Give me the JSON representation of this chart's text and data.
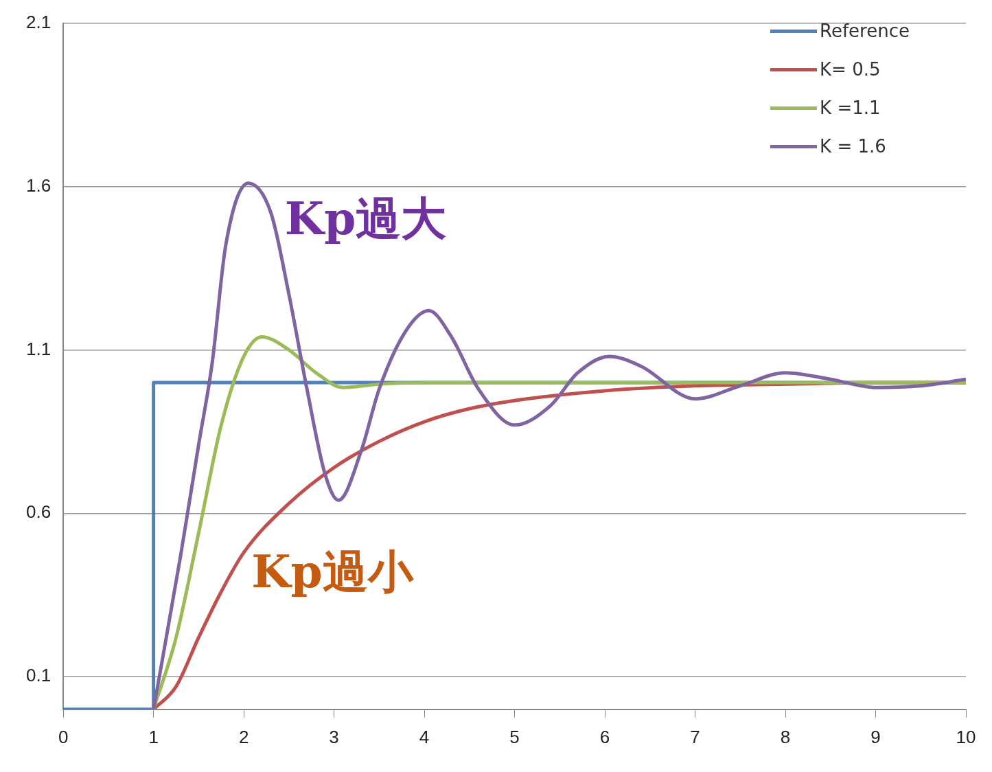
{
  "chart_data": {
    "type": "line",
    "xlim": [
      0,
      10
    ],
    "xticks": [
      0,
      1,
      2,
      3,
      4,
      5,
      6,
      7,
      8,
      9,
      10
    ],
    "ylim": [
      0,
      2.1
    ],
    "yticks": [
      0.1,
      0.6,
      1.1,
      1.6,
      2.1
    ],
    "grid": "y",
    "legend": "top right",
    "marker": "none",
    "line_style": "solid",
    "annotations": [
      "Kp過大",
      "Kp過小"
    ],
    "series": [
      {
        "name": "Reference",
        "color": "#4f81bd",
        "x": [
          0,
          1,
          1,
          10
        ],
        "values": [
          0,
          0,
          1,
          1
        ]
      },
      {
        "name": "K= 0.5",
        "color": "#c0504d",
        "x": [
          1,
          1.25,
          1.5,
          1.75,
          2,
          2.5,
          3,
          3.5,
          4,
          4.5,
          5,
          6,
          7,
          8,
          9,
          10
        ],
        "values": [
          0,
          0.07,
          0.22,
          0.36,
          0.48,
          0.63,
          0.74,
          0.82,
          0.88,
          0.92,
          0.945,
          0.975,
          0.99,
          0.995,
          1,
          1
        ]
      },
      {
        "name": "K =1.1",
        "color": "#9bbb59",
        "x": [
          1,
          1.25,
          1.5,
          1.75,
          2,
          2.2,
          2.5,
          2.8,
          3.1,
          3.5,
          4,
          5,
          6,
          7,
          8,
          9,
          10
        ],
        "values": [
          0,
          0.22,
          0.54,
          0.87,
          1.08,
          1.14,
          1.1,
          1.03,
          0.985,
          0.995,
          1,
          1,
          1,
          1,
          1,
          1,
          1
        ]
      },
      {
        "name": "K = 1.6",
        "color": "#8064a2",
        "x": [
          1,
          1.3,
          1.5,
          1.65,
          1.8,
          2.05,
          2.3,
          2.5,
          2.7,
          2.9,
          3.05,
          3.3,
          3.5,
          3.8,
          4.05,
          4.3,
          4.6,
          5,
          5.4,
          5.7,
          6.05,
          6.4,
          7,
          7.5,
          8,
          8.5,
          9,
          9.5,
          10
        ],
        "values": [
          0,
          0.47,
          0.81,
          1.06,
          1.42,
          1.61,
          1.52,
          1.27,
          0.98,
          0.72,
          0.64,
          0.79,
          0.98,
          1.16,
          1.22,
          1.14,
          0.98,
          0.87,
          0.93,
          1.03,
          1.08,
          1.05,
          0.95,
          0.99,
          1.03,
          1.01,
          0.985,
          0.99,
          1.01
        ]
      }
    ]
  }
}
